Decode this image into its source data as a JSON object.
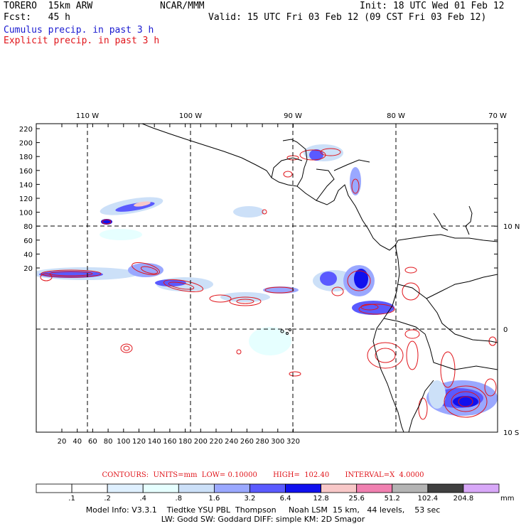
{
  "header": {
    "model": "TORERO  15km ARW",
    "org": "NCAR/MMM",
    "init": "Init: 18 UTC Wed 01 Feb 12",
    "fcst": "Fcst:   45 h",
    "valid": "Valid: 15 UTC Fri 03 Feb 12 (09 CST Fri 03 Feb 12)",
    "cumulus": "Cumulus precip. in past 3 h",
    "explicit": "Explicit precip. in past 3 h"
  },
  "map": {
    "top_lon_labels": [
      "110 W",
      "100 W",
      "90 W",
      "80 W",
      "70 W"
    ],
    "right_lat_labels": [
      "10 N",
      "0",
      "10 S"
    ],
    "left_y_ticks": [
      "220",
      "200",
      "180",
      "160",
      "140",
      "120",
      "100",
      "80",
      "60",
      "40",
      "20"
    ],
    "bottom_x_ticks": [
      "20",
      "40",
      "60",
      "80",
      "100",
      "120",
      "140",
      "160",
      "180",
      "200",
      "220",
      "240",
      "260",
      "280",
      "300",
      "320"
    ],
    "colors": {
      "cumulus": "#1a1ad0",
      "explicit": "#e0141a",
      "border": "#000000"
    }
  },
  "colorbar": {
    "values": [
      ".1",
      ".2",
      ".4",
      ".8",
      "1.6",
      "3.2",
      "6.4",
      "12.8",
      "25.6",
      "51.2",
      "102.4",
      "204.8"
    ],
    "unit": "mm",
    "colors": [
      "#ffffff",
      "#ffffff",
      "#dff0ff",
      "#e6ffff",
      "#cce0f8",
      "#9aa8ff",
      "#5a5aff",
      "#1010ee",
      "#f8c8c8",
      "#f080b0",
      "#b4b4b4",
      "#404040",
      "#d8a8f8"
    ]
  },
  "contours_line": "CONTOURS:  UNITS=mm  LOW= 0.10000       HIGH=  102.40       INTERVAL=X  4.0000",
  "model_info": {
    "line1": "Model Info: V3.3.1    Tiedtke YSU PBL  Thompson     Noah LSM  15 km,   44 levels,    53 sec",
    "line2": "LW: Godd SW: Goddard DIFF: simple KM: 2D Smagor"
  }
}
